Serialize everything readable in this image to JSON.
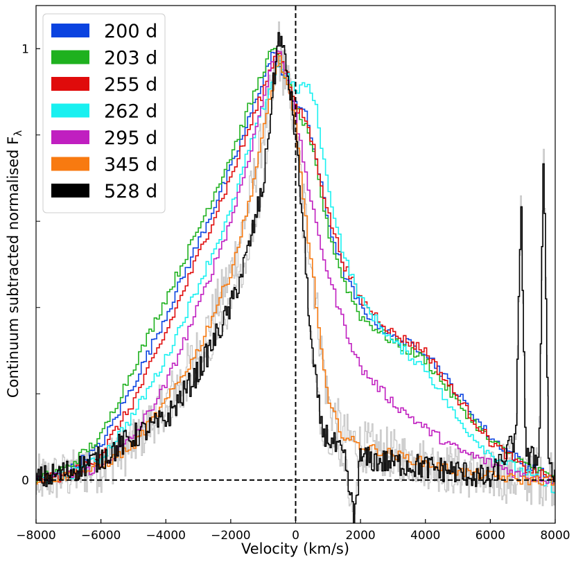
{
  "chart_data": {
    "type": "line",
    "drawstyle": "steps-mid",
    "xlabel": "Velocity (km/s)",
    "ylabel": "Continuum subtracted normalised F",
    "ylabel_subscript": "λ",
    "xlim": [
      -8000,
      8000
    ],
    "ylim": [
      -0.1,
      1.1
    ],
    "xticks": [
      -8000,
      -6000,
      -4000,
      -2000,
      0,
      2000,
      4000,
      6000,
      8000
    ],
    "xtick_labels": [
      "−8000",
      "−6000",
      "−4000",
      "−2000",
      "0",
      "2000",
      "4000",
      "6000",
      "8000"
    ],
    "yticks": [
      0,
      1
    ],
    "ytick_labels": [
      "0",
      "1"
    ],
    "yminor_ticks": [
      0.2,
      0.4,
      0.6,
      0.8
    ],
    "reference_lines": [
      {
        "orientation": "horizontal",
        "value": 0,
        "style": "dashed"
      },
      {
        "orientation": "vertical",
        "value": 0,
        "style": "dashed"
      }
    ],
    "legend_position": "top-left",
    "raw_color": "#c8c8c8",
    "series": [
      {
        "name": "200 d",
        "color": "#0b43e0",
        "x": [
          -8000,
          -7000,
          -6000,
          -5000,
          -4000,
          -3000,
          -2000,
          -1500,
          -1000,
          -700,
          -500,
          -200,
          0,
          300,
          600,
          1000,
          1500,
          2000,
          3000,
          4000,
          5000,
          6000,
          7000,
          8000
        ],
        "y": [
          0.0,
          0.02,
          0.08,
          0.22,
          0.38,
          0.55,
          0.72,
          0.82,
          0.93,
          0.99,
          0.96,
          0.9,
          0.88,
          0.85,
          0.76,
          0.6,
          0.48,
          0.4,
          0.33,
          0.3,
          0.2,
          0.1,
          0.04,
          0.0
        ]
      },
      {
        "name": "203 d",
        "color": "#1fb11f",
        "x": [
          -8000,
          -7000,
          -6000,
          -5000,
          -4000,
          -3000,
          -2000,
          -1500,
          -1000,
          -700,
          -500,
          -200,
          0,
          300,
          600,
          1000,
          1500,
          2000,
          3000,
          4000,
          5000,
          6000,
          7000,
          8000
        ],
        "y": [
          0.0,
          0.03,
          0.1,
          0.26,
          0.42,
          0.58,
          0.75,
          0.85,
          0.95,
          1.0,
          0.97,
          0.92,
          0.86,
          0.82,
          0.74,
          0.58,
          0.46,
          0.38,
          0.32,
          0.28,
          0.18,
          0.09,
          0.04,
          0.0
        ]
      },
      {
        "name": "255 d",
        "color": "#e00b0b",
        "x": [
          -8000,
          -7000,
          -6000,
          -5000,
          -4000,
          -3000,
          -2000,
          -1500,
          -1000,
          -700,
          -500,
          -200,
          0,
          300,
          600,
          1000,
          1500,
          2000,
          3000,
          4000,
          5000,
          6000,
          7000,
          8000
        ],
        "y": [
          0.0,
          0.01,
          0.06,
          0.18,
          0.34,
          0.52,
          0.7,
          0.8,
          0.9,
          0.97,
          1.0,
          0.93,
          0.86,
          0.84,
          0.76,
          0.62,
          0.5,
          0.42,
          0.34,
          0.3,
          0.19,
          0.09,
          0.03,
          0.0
        ]
      },
      {
        "name": "262 d",
        "color": "#19f0f0",
        "x": [
          -8000,
          -7000,
          -6000,
          -5000,
          -4000,
          -3000,
          -2000,
          -1500,
          -1000,
          -700,
          -500,
          -200,
          0,
          300,
          600,
          1000,
          1500,
          2000,
          3000,
          4000,
          5000,
          6000,
          7000,
          8000
        ],
        "y": [
          0.0,
          0.01,
          0.05,
          0.15,
          0.28,
          0.45,
          0.62,
          0.75,
          0.86,
          0.93,
          0.97,
          0.93,
          0.9,
          0.92,
          0.88,
          0.68,
          0.52,
          0.42,
          0.32,
          0.26,
          0.14,
          0.06,
          0.02,
          -0.02
        ]
      },
      {
        "name": "295 d",
        "color": "#c01fc0",
        "x": [
          -8000,
          -7000,
          -6000,
          -5000,
          -4000,
          -3000,
          -2000,
          -1500,
          -1000,
          -700,
          -500,
          -200,
          0,
          300,
          600,
          1000,
          1500,
          2000,
          3000,
          4000,
          5000,
          6000,
          7000,
          8000
        ],
        "y": [
          0.0,
          0.01,
          0.03,
          0.1,
          0.22,
          0.4,
          0.6,
          0.73,
          0.88,
          0.97,
          1.0,
          0.92,
          0.84,
          0.72,
          0.6,
          0.48,
          0.36,
          0.26,
          0.18,
          0.12,
          0.07,
          0.04,
          0.01,
          0.0
        ]
      },
      {
        "name": "345 d",
        "color": "#f87a10",
        "x": [
          -8000,
          -7000,
          -6000,
          -5000,
          -4000,
          -3000,
          -2000,
          -1500,
          -1000,
          -700,
          -500,
          -200,
          0,
          200,
          500,
          800,
          1000,
          1500,
          2000,
          3000,
          4000,
          5000,
          6000,
          7000,
          8000
        ],
        "y": [
          0.0,
          0.01,
          0.03,
          0.08,
          0.18,
          0.3,
          0.48,
          0.62,
          0.8,
          0.92,
          0.98,
          0.9,
          0.82,
          0.68,
          0.5,
          0.3,
          0.18,
          0.1,
          0.08,
          0.06,
          0.04,
          0.02,
          0.01,
          0.0,
          0.0
        ]
      },
      {
        "name": "528 d",
        "color": "#000000",
        "x": [
          -8000,
          -7000,
          -6000,
          -5000,
          -4000,
          -3000,
          -2000,
          -1500,
          -1000,
          -700,
          -500,
          -200,
          0,
          200,
          500,
          800,
          1000,
          1500,
          1800,
          2000,
          3000,
          4000,
          5000,
          6000,
          6800,
          6950,
          7100,
          7500,
          7650,
          7800,
          8000
        ],
        "y": [
          0.0,
          0.02,
          0.05,
          0.1,
          0.14,
          0.25,
          0.4,
          0.52,
          0.68,
          0.9,
          1.04,
          0.92,
          0.8,
          0.62,
          0.3,
          0.12,
          0.1,
          0.05,
          -0.09,
          0.05,
          0.04,
          0.03,
          0.02,
          0.0,
          0.1,
          0.67,
          0.05,
          0.05,
          0.77,
          0.05,
          0.0
        ]
      }
    ]
  }
}
